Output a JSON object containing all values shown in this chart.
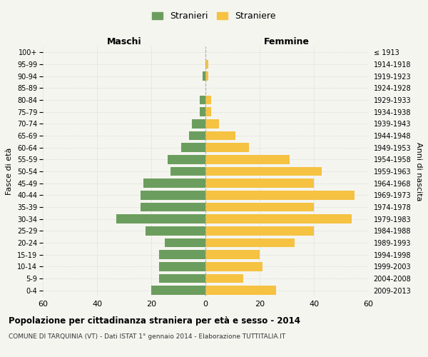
{
  "age_groups": [
    "100+",
    "95-99",
    "90-94",
    "85-89",
    "80-84",
    "75-79",
    "70-74",
    "65-69",
    "60-64",
    "55-59",
    "50-54",
    "45-49",
    "40-44",
    "35-39",
    "30-34",
    "25-29",
    "20-24",
    "15-19",
    "10-14",
    "5-9",
    "0-4"
  ],
  "birth_years": [
    "≤ 1913",
    "1914-1918",
    "1919-1923",
    "1924-1928",
    "1929-1933",
    "1934-1938",
    "1939-1943",
    "1944-1948",
    "1949-1953",
    "1954-1958",
    "1959-1963",
    "1964-1968",
    "1969-1973",
    "1974-1978",
    "1979-1983",
    "1984-1988",
    "1989-1993",
    "1994-1998",
    "1999-2003",
    "2004-2008",
    "2009-2013"
  ],
  "maschi": [
    0,
    0,
    1,
    0,
    2,
    2,
    5,
    6,
    9,
    14,
    13,
    23,
    24,
    24,
    33,
    22,
    15,
    17,
    17,
    17,
    20
  ],
  "femmine": [
    0,
    1,
    1,
    0,
    2,
    2,
    5,
    11,
    16,
    31,
    43,
    40,
    55,
    40,
    54,
    40,
    33,
    20,
    21,
    14,
    26
  ],
  "color_maschi": "#6b9e5e",
  "color_femmine": "#f5c242",
  "title": "Popolazione per cittadinanza straniera per età e sesso - 2014",
  "subtitle": "COMUNE DI TARQUINIA (VT) - Dati ISTAT 1° gennaio 2014 - Elaborazione TUTTITALIA.IT",
  "xlabel_left": "Maschi",
  "xlabel_right": "Femmine",
  "ylabel_left": "Fasce di età",
  "ylabel_right": "Anni di nascita",
  "legend_maschi": "Stranieri",
  "legend_femmine": "Straniere",
  "xlim": 60,
  "background_color": "#f5f5f0",
  "grid_color": "#cccccc"
}
